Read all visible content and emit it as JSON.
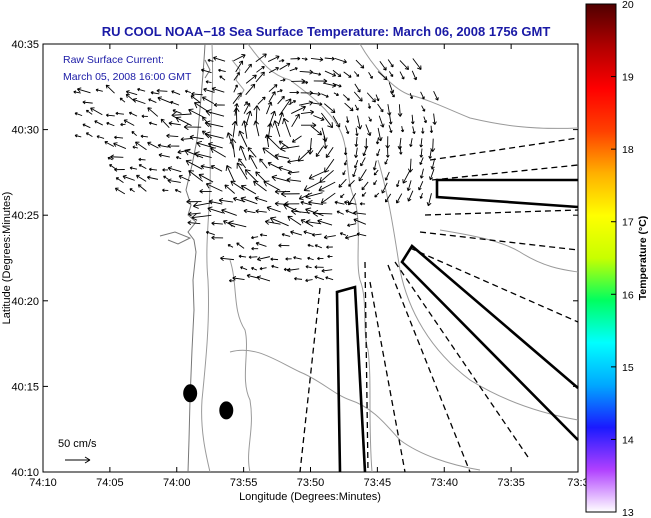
{
  "chart_data": {
    "type": "vector-field",
    "title": "RU COOL  NOAA−18  Sea Surface Temperature:  March 06, 2008 1756 GMT",
    "xlabel": "Longitude (Degrees:Minutes)",
    "ylabel": "Latitude (Degrees:Minutes)",
    "x_ticks": [
      "74:10",
      "74:05",
      "74:00",
      "73:55",
      "73:50",
      "73:45",
      "73:40",
      "73:35",
      "73:3"
    ],
    "y_ticks": [
      "40:10",
      "40:15",
      "40:20",
      "40:25",
      "40:30",
      "40:35"
    ],
    "xlim": [
      -74.1667,
      -73.5
    ],
    "ylim": [
      40.1667,
      40.5833
    ],
    "annotation_lines": [
      "Raw Surface Current:",
      "March 05, 2008 16:00 GMT"
    ],
    "scale_label": "50 cm/s",
    "colorbar": {
      "label": "Temperature (°C)",
      "min": 13,
      "max": 20,
      "ticks": [
        "13",
        "14",
        "15",
        "16",
        "17",
        "18",
        "19",
        "20"
      ],
      "colors": [
        "#ffffff",
        "#b040ff",
        "#1a1aff",
        "#00a8ff",
        "#00ffff",
        "#00ff60",
        "#c8ff00",
        "#ffff00",
        "#ffb000",
        "#ff4000",
        "#ff0000",
        "#b00000",
        "#500000"
      ]
    },
    "markers": [
      {
        "lon": -73.9833,
        "lat": 40.2433
      },
      {
        "lon": -73.9383,
        "lat": 40.2267
      }
    ],
    "grid": false
  }
}
